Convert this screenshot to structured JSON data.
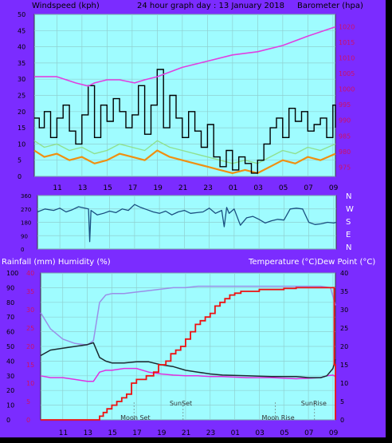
{
  "colors": {
    "frame": "#7b2cff",
    "plot_bg": "#9ffcff",
    "grid": "#8fd0d0",
    "wind_gust": "#000000",
    "wind_avg": "#f09010",
    "wind_light": "#90e090",
    "barometer": "#e040e0",
    "direction": "#1a4f80",
    "rain": "#ee1111",
    "humidity": "#9a90e8",
    "temperature": "#1a2a30",
    "dew_point": "#e030e0",
    "left_axis_text": "#000000",
    "right_axis_text": "#cc1166"
  },
  "header": {
    "left": "Windspeed (kph)",
    "center": "24 hour graph day : 13 January 2018",
    "right": "Barometer (hpa)"
  },
  "mid_labels": {
    "left": "Rainfall (mm)  Humidity (%)",
    "right": "Temperature (°C)Dew Point (°C)"
  },
  "compass": [
    "N",
    "W",
    "S",
    "E",
    "N"
  ],
  "time_ticks": [
    "11",
    "13",
    "15",
    "17",
    "19",
    "21",
    "23",
    "01",
    "03",
    "05",
    "07",
    "09"
  ],
  "time_ticks_bottom": [
    "11",
    "13",
    "15",
    "17",
    "19",
    "21",
    "23",
    "01",
    "03",
    "05",
    "07",
    "09"
  ],
  "annotations": [
    "Moon Set",
    "SunSet",
    "Moon Rise",
    "SunRise"
  ],
  "chart_data": [
    {
      "type": "line",
      "name": "wind_barometer",
      "x_range_hours": [
        9.2,
        33.2
      ],
      "left_axis": {
        "label": "Windspeed (kph)",
        "ylim": [
          0,
          50
        ],
        "ticks": [
          0,
          5,
          10,
          15,
          20,
          25,
          30,
          35,
          40,
          45,
          50
        ]
      },
      "right_axis": {
        "label": "Barometer (hpa)",
        "ylim": [
          972,
          1024
        ],
        "ticks": [
          975,
          980,
          985,
          990,
          995,
          1000,
          1005,
          1010,
          1015,
          1020
        ]
      },
      "series": [
        {
          "name": "Barometer",
          "axis": "right",
          "x": [
            9.2,
            11,
            12.5,
            13.5,
            14,
            15,
            16,
            17.2,
            18,
            19,
            21,
            23,
            25,
            27,
            29,
            31,
            33.2
          ],
          "y": [
            1004,
            1004,
            1002,
            1001,
            1002,
            1003,
            1003,
            1002,
            1003,
            1004,
            1007,
            1009,
            1011,
            1012,
            1014,
            1017,
            1020
          ]
        },
        {
          "name": "Wind gust",
          "axis": "left",
          "x": [
            9.2,
            9.6,
            10,
            10.5,
            11,
            11.5,
            12,
            12.5,
            13,
            13.5,
            14,
            14.5,
            15,
            15.5,
            16,
            16.5,
            17,
            17.5,
            18,
            18.5,
            19,
            19.5,
            20,
            20.5,
            21,
            21.5,
            22,
            22.5,
            23,
            23.5,
            24,
            24.5,
            25,
            25.5,
            26,
            26.5,
            27,
            27.5,
            28,
            28.5,
            29,
            29.5,
            30,
            30.5,
            31,
            31.5,
            32,
            32.5,
            33,
            33.2
          ],
          "y": [
            18,
            15,
            20,
            12,
            18,
            22,
            14,
            10,
            19,
            28,
            12,
            22,
            17,
            24,
            20,
            15,
            19,
            28,
            13,
            22,
            33,
            15,
            25,
            18,
            12,
            20,
            14,
            9,
            16,
            6,
            3,
            8,
            2,
            6,
            4,
            1,
            5,
            10,
            15,
            18,
            12,
            21,
            17,
            20,
            14,
            16,
            18,
            12,
            22,
            15
          ]
        },
        {
          "name": "Wind average",
          "axis": "left",
          "x": [
            9.2,
            10,
            11,
            12,
            13,
            14,
            15,
            16,
            17,
            18,
            19,
            20,
            21,
            22,
            23,
            24,
            25,
            26,
            27,
            28,
            29,
            30,
            31,
            32,
            33.2
          ],
          "y": [
            8,
            6,
            7,
            5,
            6,
            4,
            5,
            7,
            6,
            5,
            8,
            6,
            5,
            4,
            3,
            2,
            1,
            2,
            1,
            3,
            5,
            4,
            6,
            5,
            7
          ]
        }
      ]
    },
    {
      "type": "line",
      "name": "wind_direction",
      "x_range_hours": [
        9.2,
        33.2
      ],
      "ylim": [
        0,
        360
      ],
      "ticks": [
        0,
        90,
        180,
        270,
        360
      ],
      "series": [
        {
          "name": "Wind direction",
          "x": [
            9.2,
            9.8,
            10.5,
            11,
            11.5,
            12,
            12.5,
            13,
            13.3,
            13.4,
            13.5,
            14,
            14.5,
            15,
            15.5,
            16,
            16.5,
            17,
            17.5,
            18,
            18.5,
            19,
            19.5,
            20,
            20.5,
            21,
            21.5,
            22,
            22.5,
            23,
            23.5,
            24,
            24.2,
            24.4,
            24.6,
            25,
            25.5,
            26,
            26.5,
            27,
            27.5,
            28,
            28.5,
            29,
            29.5,
            30,
            30.5,
            31,
            31.5,
            32,
            32.5,
            33,
            33.2
          ],
          "y": [
            250,
            270,
            260,
            275,
            250,
            265,
            285,
            275,
            270,
            50,
            260,
            230,
            240,
            255,
            245,
            270,
            260,
            300,
            280,
            265,
            250,
            240,
            255,
            230,
            250,
            260,
            240,
            245,
            250,
            275,
            240,
            260,
            150,
            280,
            240,
            270,
            160,
            210,
            220,
            200,
            175,
            190,
            200,
            195,
            270,
            275,
            270,
            180,
            165,
            170,
            180,
            175,
            180
          ]
        }
      ]
    },
    {
      "type": "line",
      "name": "rain_humidity_temperature",
      "x_range_hours": [
        9.2,
        33.2
      ],
      "left_axis": {
        "label": "Rainfall (mm)  Humidity (%)",
        "ylim": [
          0,
          100
        ],
        "ticks": [
          0,
          10,
          20,
          30,
          40,
          50,
          60,
          70,
          80,
          90,
          100
        ]
      },
      "red_axis": {
        "ylim": [
          0,
          40
        ],
        "ticks": [
          0,
          5,
          10,
          15,
          20,
          25,
          30,
          35,
          40
        ]
      },
      "right_axis": {
        "label": "Temperature (°C)Dew Point (°C)",
        "ylim": [
          0,
          40
        ],
        "ticks": [
          0,
          5,
          10,
          15,
          20,
          25,
          30,
          35,
          40
        ]
      },
      "series": [
        {
          "name": "Rainfall",
          "axis": "red",
          "x": [
            9.2,
            13.9,
            14,
            14.3,
            14.6,
            15,
            15.4,
            15.8,
            16.2,
            16.6,
            17,
            17.4,
            17.8,
            18.4,
            18.8,
            19.4,
            19.8,
            20.2,
            20.6,
            21,
            21.4,
            21.8,
            22.2,
            22.6,
            23,
            23.4,
            23.8,
            24.2,
            24.6,
            25,
            25.5,
            26,
            27,
            28,
            29,
            30,
            31,
            32,
            33,
            33.1,
            33.2
          ],
          "y": [
            0,
            0,
            1,
            2,
            3,
            4,
            5,
            6,
            7,
            10,
            11,
            11,
            12,
            13,
            15,
            16,
            18,
            19,
            20,
            22,
            24,
            26,
            27,
            28,
            29,
            31,
            32,
            33,
            34,
            34.5,
            35,
            35,
            35.5,
            35.5,
            35.8,
            36,
            36,
            36,
            36,
            15,
            0
          ]
        },
        {
          "name": "Humidity",
          "axis": "left",
          "x": [
            9.2,
            10,
            11,
            12,
            13,
            13.5,
            14,
            14.5,
            15,
            16,
            17,
            18,
            19,
            20,
            21,
            22,
            23,
            24,
            26,
            28,
            30,
            32,
            32.8,
            33.2
          ],
          "y": [
            73,
            62,
            55,
            52,
            51,
            54,
            80,
            85,
            86,
            86,
            87,
            88,
            89,
            90,
            90,
            91,
            91,
            91,
            91,
            91,
            91,
            91,
            90,
            78
          ]
        },
        {
          "name": "Temperature",
          "axis": "right",
          "x": [
            9.2,
            10,
            11,
            12,
            13,
            13.5,
            14,
            14.5,
            15,
            16,
            17,
            18,
            19,
            20,
            21,
            22,
            23,
            24,
            26,
            28,
            30,
            31,
            32,
            32.5,
            33,
            33.2
          ],
          "y": [
            17.5,
            19,
            19.5,
            20,
            20.5,
            21,
            17,
            16,
            15.5,
            15.5,
            15.8,
            15.8,
            15,
            14.5,
            13.5,
            13,
            12.5,
            12.2,
            12,
            11.8,
            11.8,
            11.5,
            11.5,
            12,
            14,
            16.5
          ]
        },
        {
          "name": "Dew Point",
          "axis": "right",
          "x": [
            9.2,
            10,
            11,
            12,
            13,
            13.5,
            14,
            14.5,
            15,
            16,
            17,
            18,
            19,
            20,
            21,
            22,
            23,
            24,
            26,
            28,
            30,
            32,
            32.5,
            33,
            33.2
          ],
          "y": [
            12,
            11.5,
            11.5,
            11,
            10.5,
            10.5,
            13,
            13.5,
            13.5,
            14,
            14,
            13,
            12.5,
            12.2,
            12,
            12,
            11.8,
            11.8,
            11.5,
            11.5,
            11.2,
            11.5,
            12,
            12.2,
            11.8
          ]
        }
      ]
    }
  ]
}
